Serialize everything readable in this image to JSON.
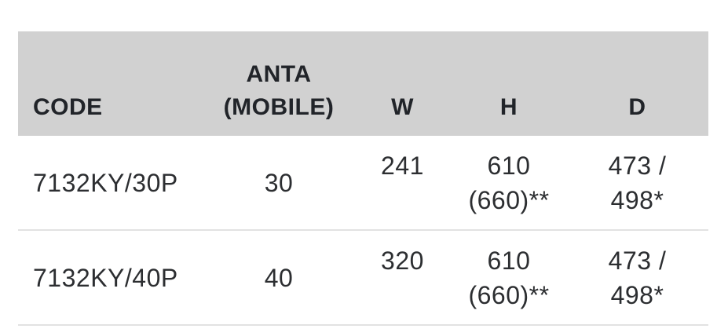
{
  "table": {
    "header": {
      "code": "CODE",
      "anta_line1": "ANTA",
      "anta_line2": "(MOBILE)",
      "w": "W",
      "h": "H",
      "d": "D"
    },
    "rows": [
      {
        "code": "7132KY/30P",
        "anta": "30",
        "w": "241",
        "h_line1": "610",
        "h_line2": "(660)**",
        "d_line1": "473 /",
        "d_line2": "498*"
      },
      {
        "code": "7132KY/40P",
        "anta": "40",
        "w": "320",
        "h_line1": "610",
        "h_line2": "(660)**",
        "d_line1": "473 /",
        "d_line2": "498*"
      }
    ]
  },
  "colors": {
    "header_bg": "#d1d1d1",
    "header_text": "#212429",
    "body_text": "#2c2e31",
    "divider": "#e2e2e2",
    "page_bg": "#ffffff"
  }
}
